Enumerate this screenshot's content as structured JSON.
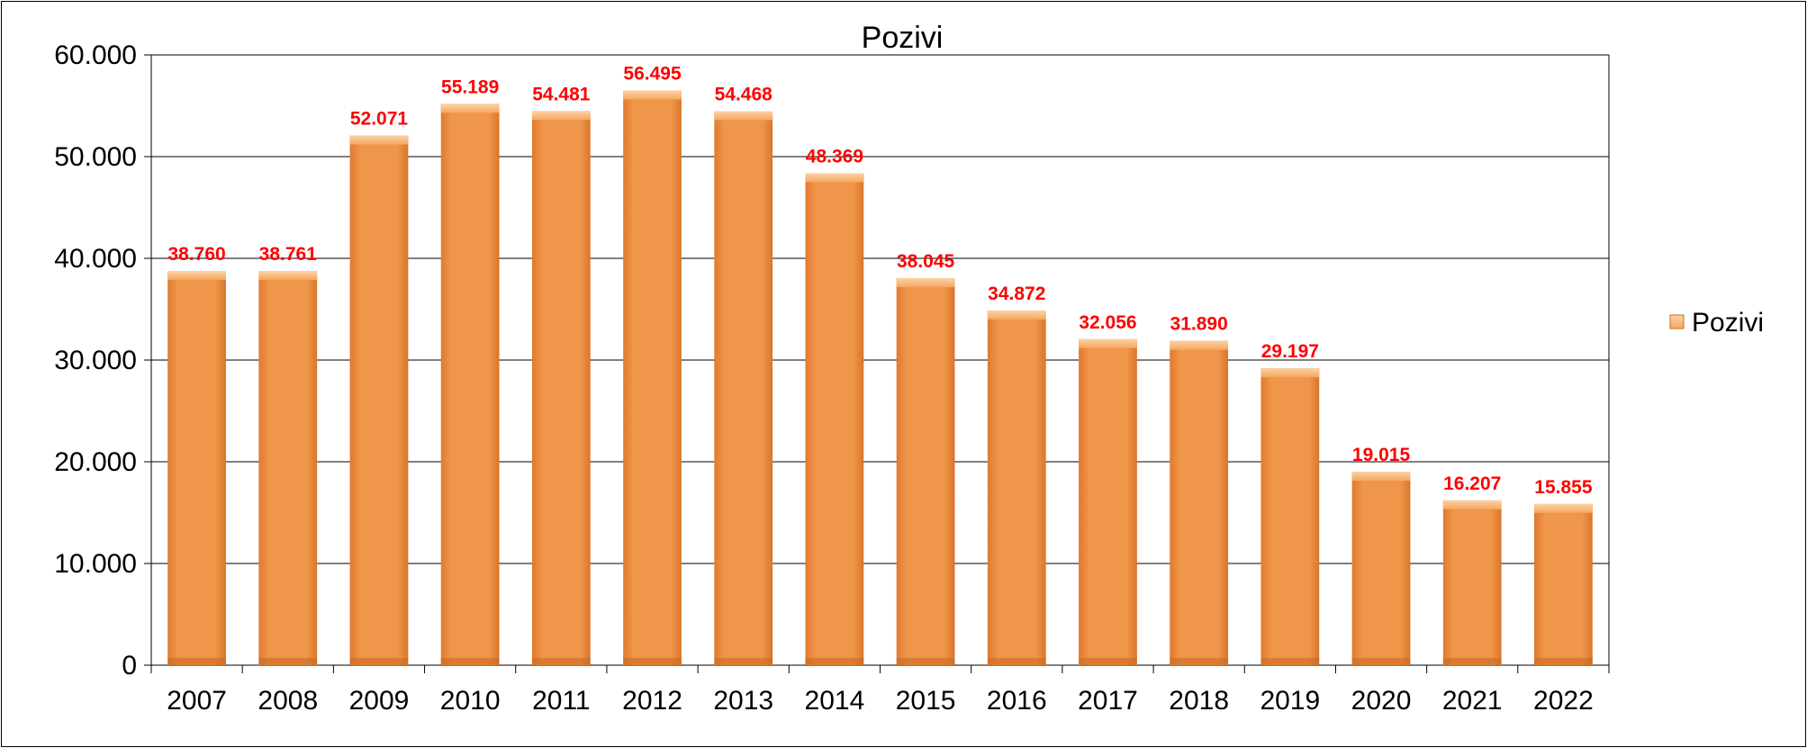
{
  "chart_data": {
    "type": "bar",
    "title": "Pozivi",
    "categories": [
      "2007",
      "2008",
      "2009",
      "2010",
      "2011",
      "2012",
      "2013",
      "2014",
      "2015",
      "2016",
      "2017",
      "2018",
      "2019",
      "2020",
      "2021",
      "2022"
    ],
    "series": [
      {
        "name": "Pozivi",
        "values": [
          38760,
          38761,
          52071,
          55189,
          54481,
          56495,
          54468,
          48369,
          38045,
          34872,
          32056,
          31890,
          29197,
          19015,
          16207,
          15855
        ],
        "labels": [
          "38.760",
          "38.761",
          "52.071",
          "55.189",
          "54.481",
          "56.495",
          "54.468",
          "48.369",
          "38.045",
          "34.872",
          "32.056",
          "31.890",
          "29.197",
          "19.015",
          "16.207",
          "15.855"
        ]
      }
    ],
    "ylim": [
      0,
      60000
    ],
    "yticks": [
      {
        "value": 0,
        "label": "0"
      },
      {
        "value": 10000,
        "label": "10.000"
      },
      {
        "value": 20000,
        "label": "20.000"
      },
      {
        "value": 30000,
        "label": "30.000"
      },
      {
        "value": 40000,
        "label": "40.000"
      },
      {
        "value": 50000,
        "label": "50.000"
      },
      {
        "value": 60000,
        "label": "60.000"
      }
    ],
    "xlabel": "",
    "ylabel": "",
    "grid": true,
    "legend_position": "right",
    "colors": {
      "bar": "#F0964A",
      "bar_light": "#F9C48E",
      "bar_dark": "#C96A22",
      "data_label": "#FF0000",
      "gridline": "#000000"
    }
  }
}
